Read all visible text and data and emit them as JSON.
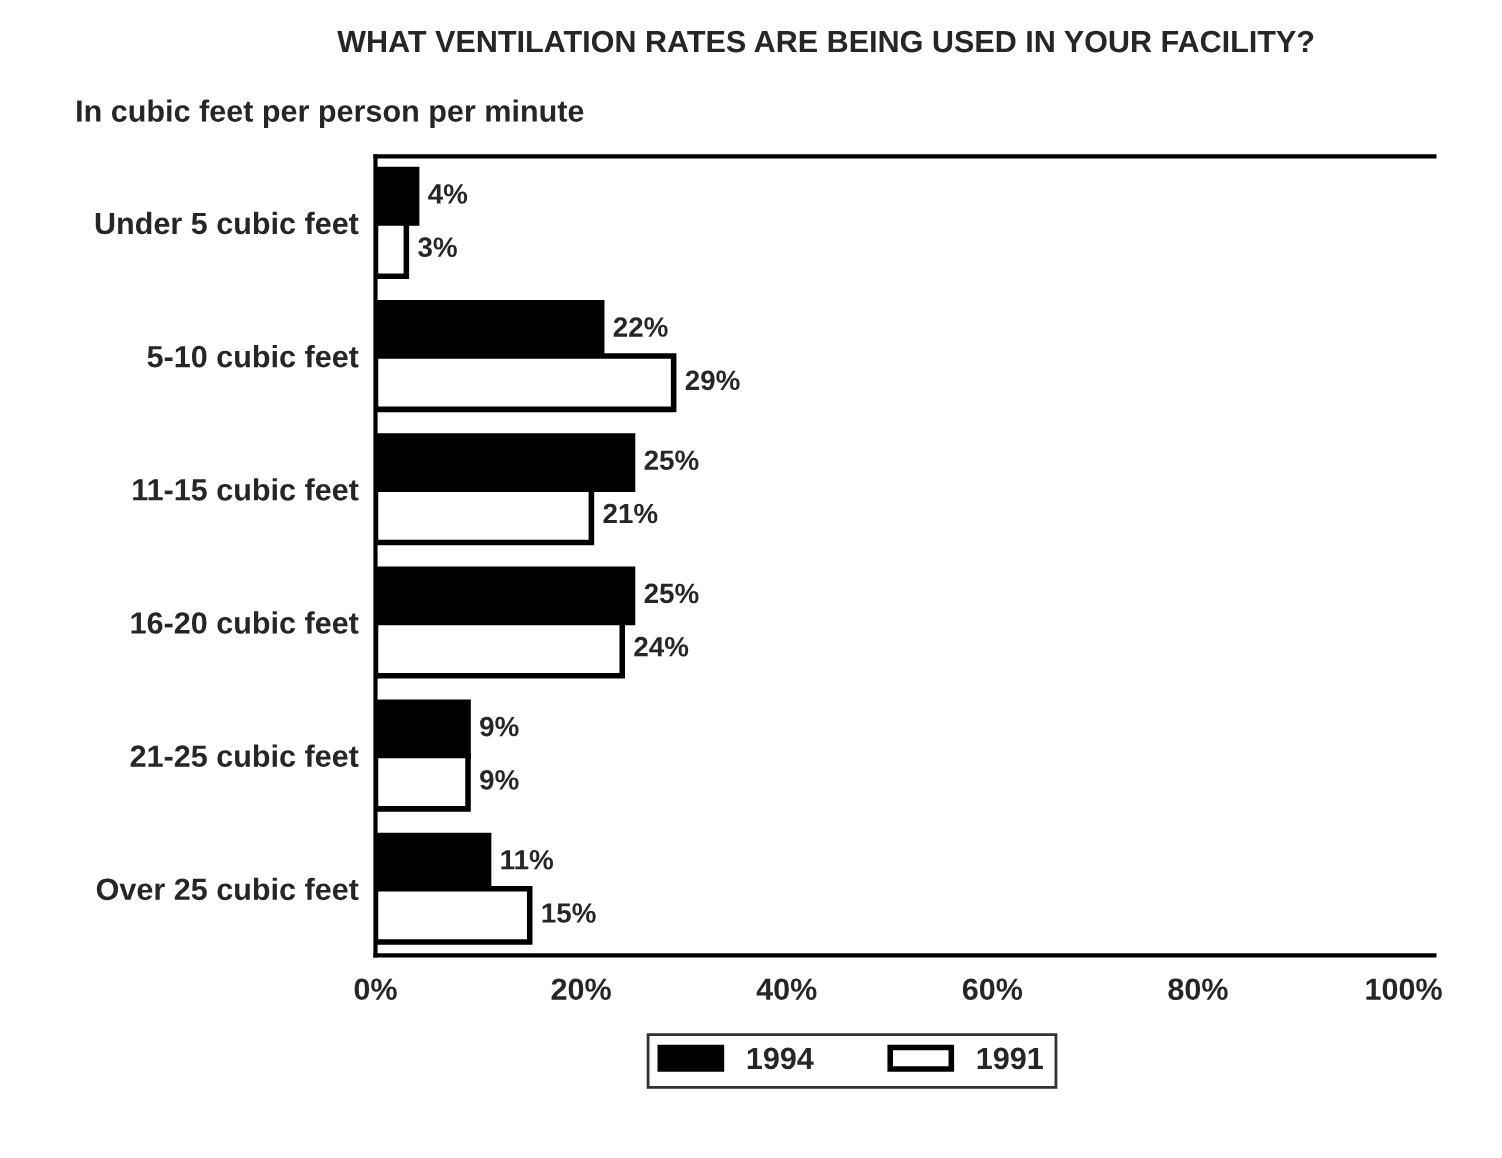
{
  "chart_data": {
    "type": "bar",
    "orientation": "horizontal",
    "title": "WHAT VENTILATION RATES ARE BEING USED IN YOUR FACILITY?",
    "subtitle": "In cubic feet per person per minute",
    "categories": [
      "Under 5 cubic feet",
      "5-10 cubic feet",
      "11-15 cubic feet",
      "16-20 cubic feet",
      "21-25 cubic feet",
      "Over 25 cubic feet"
    ],
    "series": [
      {
        "name": "1994",
        "color": "#000000",
        "values": [
          4,
          22,
          25,
          25,
          9,
          11
        ],
        "value_labels": [
          "4%",
          "22%",
          "25%",
          "25%",
          "9%",
          "11%"
        ]
      },
      {
        "name": "1991",
        "color": "#ffffff",
        "values": [
          3,
          29,
          21,
          24,
          9,
          15
        ],
        "value_labels": [
          "3%",
          "29%",
          "21%",
          "24%",
          "9%",
          "15%"
        ]
      }
    ],
    "xlim": [
      0,
      103
    ],
    "xticks": [
      {
        "value": 0,
        "label": "0%"
      },
      {
        "value": 20,
        "label": "20%"
      },
      {
        "value": 40,
        "label": "40%"
      },
      {
        "value": 60,
        "label": "60%"
      },
      {
        "value": 80,
        "label": "80%"
      },
      {
        "value": 100,
        "label": "100%"
      }
    ],
    "legend": "bottom",
    "grid": false
  }
}
